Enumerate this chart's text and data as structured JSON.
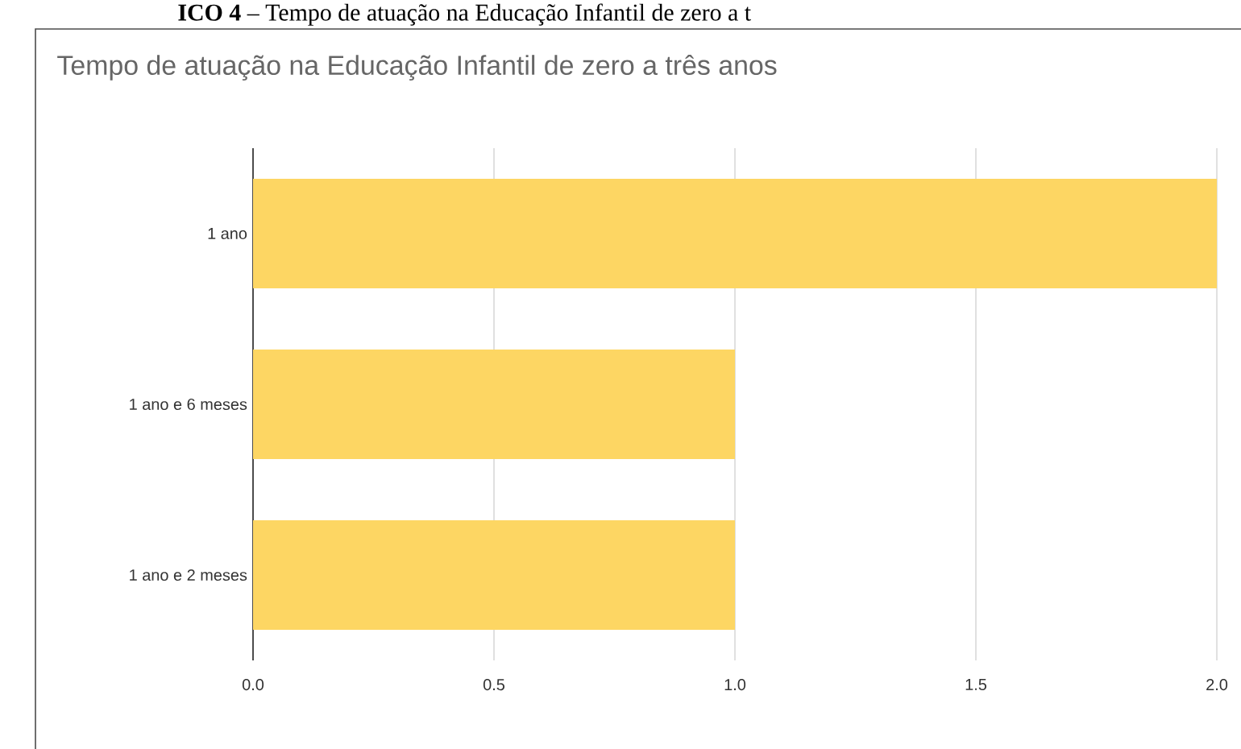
{
  "chart_data": {
    "type": "bar",
    "orientation": "horizontal",
    "title": "Tempo de atuação na Educação Infantil de zero a três anos",
    "annotations": [
      "**ICO 4** – Tempo de atuação na Educação Infantil de zero a t"
    ],
    "categories": [
      "1 ano",
      "1 ano e 6 meses",
      "1 ano e 2 meses"
    ],
    "values": [
      2,
      1,
      1
    ],
    "color": "#fdd663",
    "xlim": [
      0,
      2
    ],
    "xticks": [
      {
        "value": 0,
        "label": "0.0"
      },
      {
        "value": 0.5,
        "label": "0.5"
      },
      {
        "value": 1,
        "label": "1.0"
      },
      {
        "value": 1.5,
        "label": "1.5"
      },
      {
        "value": 2,
        "label": "2.0"
      }
    ],
    "grid": "x"
  }
}
